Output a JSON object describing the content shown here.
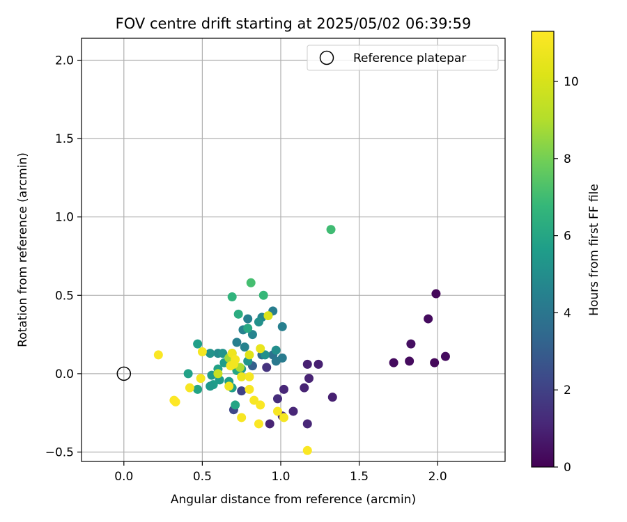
{
  "chart_data": {
    "type": "scatter",
    "title": "FOV centre drift starting at 2025/05/02 06:39:59",
    "xlabel": "Angular distance from reference (arcmin)",
    "ylabel": "Rotation from reference (arcmin)",
    "xlim": [
      -0.27,
      2.43
    ],
    "ylim": [
      -0.56,
      2.14
    ],
    "xticks": [
      0.0,
      0.5,
      1.0,
      1.5,
      2.0
    ],
    "xtick_labels": [
      "0.0",
      "0.5",
      "1.0",
      "1.5",
      "2.0"
    ],
    "yticks": [
      -0.5,
      0.0,
      0.5,
      1.0,
      1.5,
      2.0
    ],
    "ytick_labels": [
      "−0.5",
      "0.0",
      "0.5",
      "1.0",
      "1.5",
      "2.0"
    ],
    "grid": true,
    "legend": {
      "placement": "upper right",
      "entries": [
        {
          "label": "Reference platepar",
          "marker": "open-circle"
        }
      ]
    },
    "reference_point": {
      "x": 0.0,
      "y": 0.0
    },
    "colorbar": {
      "label": "Hours from first FF file",
      "colormap": "viridis",
      "range": [
        0,
        11.3
      ],
      "ticks": [
        0,
        2,
        4,
        6,
        8,
        10
      ],
      "tick_labels": [
        "0",
        "2",
        "4",
        "6",
        "8",
        "10"
      ]
    },
    "points": [
      {
        "x": 1.99,
        "y": 0.51,
        "hours": 0.2
      },
      {
        "x": 1.94,
        "y": 0.35,
        "hours": 0.3
      },
      {
        "x": 1.83,
        "y": 0.19,
        "hours": 0.4
      },
      {
        "x": 2.05,
        "y": 0.11,
        "hours": 0.3
      },
      {
        "x": 1.72,
        "y": 0.07,
        "hours": 0.3
      },
      {
        "x": 1.82,
        "y": 0.08,
        "hours": 0.3
      },
      {
        "x": 1.98,
        "y": 0.07,
        "hours": 0.2
      },
      {
        "x": 1.17,
        "y": 0.06,
        "hours": 0.9
      },
      {
        "x": 1.24,
        "y": 0.06,
        "hours": 0.9
      },
      {
        "x": 1.18,
        "y": -0.03,
        "hours": 1.0
      },
      {
        "x": 1.15,
        "y": -0.09,
        "hours": 1.0
      },
      {
        "x": 1.02,
        "y": -0.1,
        "hours": 1.1
      },
      {
        "x": 1.33,
        "y": -0.15,
        "hours": 0.9
      },
      {
        "x": 0.98,
        "y": -0.16,
        "hours": 1.3
      },
      {
        "x": 1.08,
        "y": -0.24,
        "hours": 1.1
      },
      {
        "x": 1.01,
        "y": -0.27,
        "hours": 1.2
      },
      {
        "x": 0.93,
        "y": -0.32,
        "hours": 1.0
      },
      {
        "x": 1.17,
        "y": -0.32,
        "hours": 1.1
      },
      {
        "x": 0.91,
        "y": 0.04,
        "hours": 1.5
      },
      {
        "x": 0.75,
        "y": -0.11,
        "hours": 2.0
      },
      {
        "x": 0.7,
        "y": -0.23,
        "hours": 2.2
      },
      {
        "x": 0.82,
        "y": 0.05,
        "hours": 3.1
      },
      {
        "x": 0.88,
        "y": 0.12,
        "hours": 3.6
      },
      {
        "x": 0.95,
        "y": 0.12,
        "hours": 3.8
      },
      {
        "x": 0.97,
        "y": 0.08,
        "hours": 4.1
      },
      {
        "x": 1.01,
        "y": 0.1,
        "hours": 4.2
      },
      {
        "x": 0.95,
        "y": 0.4,
        "hours": 4.3
      },
      {
        "x": 1.01,
        "y": 0.3,
        "hours": 4.4
      },
      {
        "x": 0.79,
        "y": 0.35,
        "hours": 4.4
      },
      {
        "x": 0.76,
        "y": 0.28,
        "hours": 4.5
      },
      {
        "x": 0.82,
        "y": 0.25,
        "hours": 4.6
      },
      {
        "x": 0.72,
        "y": 0.2,
        "hours": 4.4
      },
      {
        "x": 0.77,
        "y": 0.17,
        "hours": 4.5
      },
      {
        "x": 0.88,
        "y": 0.36,
        "hours": 4.7
      },
      {
        "x": 0.86,
        "y": 0.33,
        "hours": 5.1
      },
      {
        "x": 0.97,
        "y": 0.15,
        "hours": 5.0
      },
      {
        "x": 0.9,
        "y": 0.12,
        "hours": 5.1
      },
      {
        "x": 0.6,
        "y": 0.13,
        "hours": 4.9
      },
      {
        "x": 0.55,
        "y": 0.13,
        "hours": 5.2
      },
      {
        "x": 0.63,
        "y": 0.13,
        "hours": 5.2
      },
      {
        "x": 0.69,
        "y": 0.13,
        "hours": 5.6
      },
      {
        "x": 0.79,
        "y": 0.08,
        "hours": 5.3
      },
      {
        "x": 0.75,
        "y": 0.03,
        "hours": 5.5
      },
      {
        "x": 0.64,
        "y": 0.07,
        "hours": 5.6
      },
      {
        "x": 0.6,
        "y": 0.03,
        "hours": 5.8
      },
      {
        "x": 0.56,
        "y": -0.01,
        "hours": 5.5
      },
      {
        "x": 0.61,
        "y": -0.04,
        "hours": 5.5
      },
      {
        "x": 0.57,
        "y": -0.07,
        "hours": 5.6
      },
      {
        "x": 0.55,
        "y": -0.08,
        "hours": 5.4
      },
      {
        "x": 0.67,
        "y": -0.05,
        "hours": 5.6
      },
      {
        "x": 0.69,
        "y": -0.09,
        "hours": 5.7
      },
      {
        "x": 0.71,
        "y": -0.2,
        "hours": 5.9
      },
      {
        "x": 0.41,
        "y": 0.0,
        "hours": 5.8
      },
      {
        "x": 0.47,
        "y": -0.1,
        "hours": 5.9
      },
      {
        "x": 0.47,
        "y": 0.19,
        "hours": 5.7
      },
      {
        "x": 0.72,
        "y": 0.02,
        "hours": 6.0
      },
      {
        "x": 0.79,
        "y": 0.29,
        "hours": 6.1
      },
      {
        "x": 0.73,
        "y": 0.38,
        "hours": 6.3
      },
      {
        "x": 0.69,
        "y": 0.49,
        "hours": 6.6
      },
      {
        "x": 0.89,
        "y": 0.5,
        "hours": 6.8
      },
      {
        "x": 0.81,
        "y": 0.58,
        "hours": 7.1
      },
      {
        "x": 1.32,
        "y": 0.92,
        "hours": 7.0
      },
      {
        "x": 0.67,
        "y": 0.1,
        "hours": 8.7
      },
      {
        "x": 0.74,
        "y": 0.04,
        "hours": 8.9
      },
      {
        "x": 0.6,
        "y": 0.0,
        "hours": 9.6
      },
      {
        "x": 0.92,
        "y": 0.37,
        "hours": 10.1
      },
      {
        "x": 0.8,
        "y": 0.12,
        "hours": 10.2
      },
      {
        "x": 0.87,
        "y": 0.16,
        "hours": 10.6
      },
      {
        "x": 0.69,
        "y": 0.13,
        "hours": 10.8
      },
      {
        "x": 0.71,
        "y": 0.09,
        "hours": 11.0
      },
      {
        "x": 0.68,
        "y": 0.05,
        "hours": 11.0
      },
      {
        "x": 0.7,
        "y": 0.06,
        "hours": 10.9
      },
      {
        "x": 0.67,
        "y": -0.08,
        "hours": 10.8
      },
      {
        "x": 0.75,
        "y": -0.02,
        "hours": 10.7
      },
      {
        "x": 0.8,
        "y": -0.02,
        "hours": 11.0
      },
      {
        "x": 0.8,
        "y": -0.1,
        "hours": 11.1
      },
      {
        "x": 0.83,
        "y": -0.17,
        "hours": 11.1
      },
      {
        "x": 0.87,
        "y": -0.2,
        "hours": 11.2
      },
      {
        "x": 0.75,
        "y": -0.28,
        "hours": 11.1
      },
      {
        "x": 0.86,
        "y": -0.32,
        "hours": 11.2
      },
      {
        "x": 0.98,
        "y": -0.24,
        "hours": 11.1
      },
      {
        "x": 1.02,
        "y": -0.28,
        "hours": 11.0
      },
      {
        "x": 1.17,
        "y": -0.49,
        "hours": 11.2
      },
      {
        "x": 0.5,
        "y": 0.14,
        "hours": 11.0
      },
      {
        "x": 0.49,
        "y": -0.03,
        "hours": 11.0
      },
      {
        "x": 0.42,
        "y": -0.09,
        "hours": 11.1
      },
      {
        "x": 0.22,
        "y": 0.12,
        "hours": 11.2
      },
      {
        "x": 0.32,
        "y": -0.17,
        "hours": 11.2
      },
      {
        "x": 0.33,
        "y": -0.18,
        "hours": 11.3
      }
    ]
  }
}
